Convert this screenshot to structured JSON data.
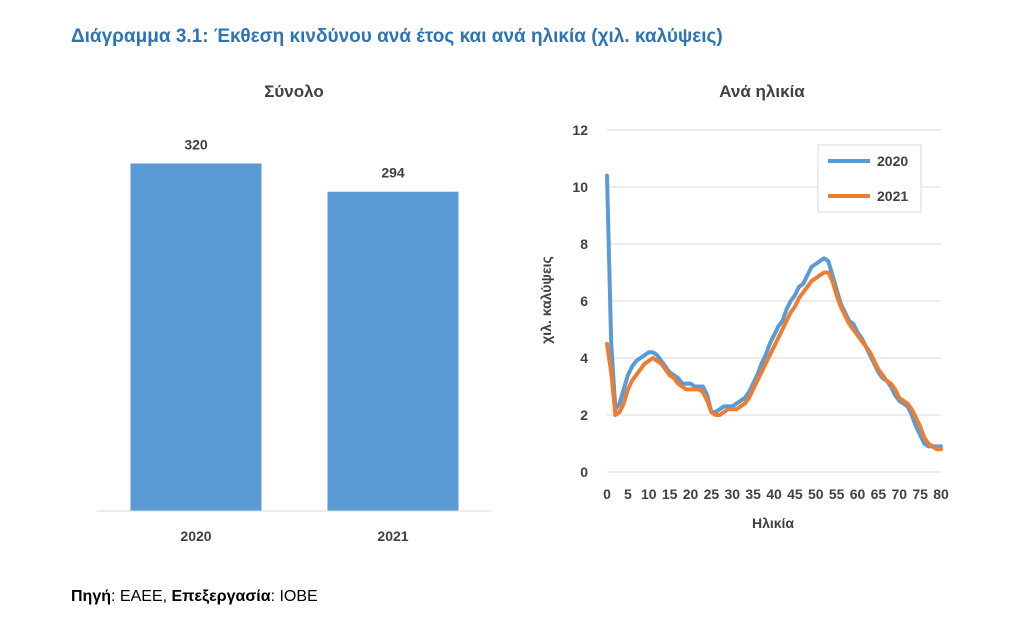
{
  "page": {
    "title": "Διάγραμμα 3.1: Έκθεση κινδύνου ανά έτος και ανά ηλικία (χιλ. καλύψεις)",
    "source_label": "Πηγή",
    "source_value": "ΕΑΕΕ",
    "processing_label": "Επεξεργασία",
    "processing_value": "ΙΟΒΕ"
  },
  "colors": {
    "title": "#2e74b5",
    "bar": "#5b9bd5",
    "series_2020": "#5b9bd5",
    "series_2021": "#ed7d31"
  },
  "chart_data": [
    {
      "type": "bar",
      "title": "Σύνολο",
      "categories": [
        "2020",
        "2021"
      ],
      "values": [
        320,
        294
      ],
      "data_labels": [
        "320",
        "294"
      ],
      "ylim": [
        0,
        350
      ],
      "grid": false,
      "xlabel": "",
      "ylabel": ""
    },
    {
      "type": "line",
      "title": "Ανά ηλικία",
      "xlabel": "Ηλικία",
      "ylabel": "χιλ. καλύψεις",
      "xlim": [
        0,
        80
      ],
      "ylim": [
        0,
        12
      ],
      "x_ticks": [
        0,
        5,
        10,
        15,
        20,
        25,
        30,
        35,
        40,
        45,
        50,
        55,
        60,
        65,
        70,
        75,
        80
      ],
      "y_ticks": [
        0,
        2,
        4,
        6,
        8,
        10,
        12
      ],
      "grid": true,
      "legend_position": "top-right",
      "x": [
        0,
        1,
        2,
        3,
        4,
        5,
        6,
        7,
        8,
        9,
        10,
        11,
        12,
        13,
        14,
        15,
        16,
        17,
        18,
        19,
        20,
        21,
        22,
        23,
        24,
        25,
        26,
        27,
        28,
        29,
        30,
        31,
        32,
        33,
        34,
        35,
        36,
        37,
        38,
        39,
        40,
        41,
        42,
        43,
        44,
        45,
        46,
        47,
        48,
        49,
        50,
        51,
        52,
        53,
        54,
        55,
        56,
        57,
        58,
        59,
        60,
        61,
        62,
        63,
        64,
        65,
        66,
        67,
        68,
        69,
        70,
        71,
        72,
        73,
        74,
        75,
        76,
        77,
        78,
        79,
        80
      ],
      "series": [
        {
          "name": "2020",
          "values": [
            10.4,
            4.5,
            2.2,
            2.4,
            2.9,
            3.4,
            3.7,
            3.9,
            4.0,
            4.1,
            4.2,
            4.2,
            4.1,
            3.9,
            3.7,
            3.5,
            3.4,
            3.3,
            3.1,
            3.1,
            3.1,
            3.0,
            3.0,
            3.0,
            2.7,
            2.1,
            2.1,
            2.2,
            2.3,
            2.3,
            2.3,
            2.4,
            2.5,
            2.6,
            2.8,
            3.1,
            3.4,
            3.8,
            4.1,
            4.5,
            4.8,
            5.1,
            5.3,
            5.7,
            6.0,
            6.2,
            6.5,
            6.6,
            6.9,
            7.2,
            7.3,
            7.4,
            7.5,
            7.4,
            6.9,
            6.4,
            5.9,
            5.6,
            5.3,
            5.2,
            4.9,
            4.7,
            4.4,
            4.1,
            3.8,
            3.5,
            3.3,
            3.2,
            3.0,
            2.7,
            2.5,
            2.4,
            2.3,
            2.0,
            1.6,
            1.3,
            1.0,
            0.9,
            0.9,
            0.9,
            0.9
          ]
        },
        {
          "name": "2021",
          "values": [
            4.5,
            3.5,
            2.0,
            2.1,
            2.4,
            2.9,
            3.2,
            3.4,
            3.6,
            3.8,
            3.9,
            4.0,
            3.9,
            3.8,
            3.6,
            3.4,
            3.3,
            3.1,
            3.0,
            2.9,
            2.9,
            2.9,
            2.9,
            2.8,
            2.5,
            2.1,
            2.0,
            2.0,
            2.1,
            2.2,
            2.2,
            2.2,
            2.3,
            2.4,
            2.6,
            2.9,
            3.2,
            3.5,
            3.8,
            4.1,
            4.4,
            4.7,
            5.0,
            5.3,
            5.6,
            5.8,
            6.1,
            6.3,
            6.5,
            6.7,
            6.8,
            6.9,
            7.0,
            7.0,
            6.7,
            6.2,
            5.8,
            5.5,
            5.2,
            5.0,
            4.8,
            4.6,
            4.4,
            4.2,
            3.9,
            3.6,
            3.4,
            3.2,
            3.1,
            2.9,
            2.6,
            2.5,
            2.4,
            2.2,
            1.9,
            1.6,
            1.2,
            1.0,
            0.9,
            0.8,
            0.8
          ]
        }
      ]
    }
  ]
}
